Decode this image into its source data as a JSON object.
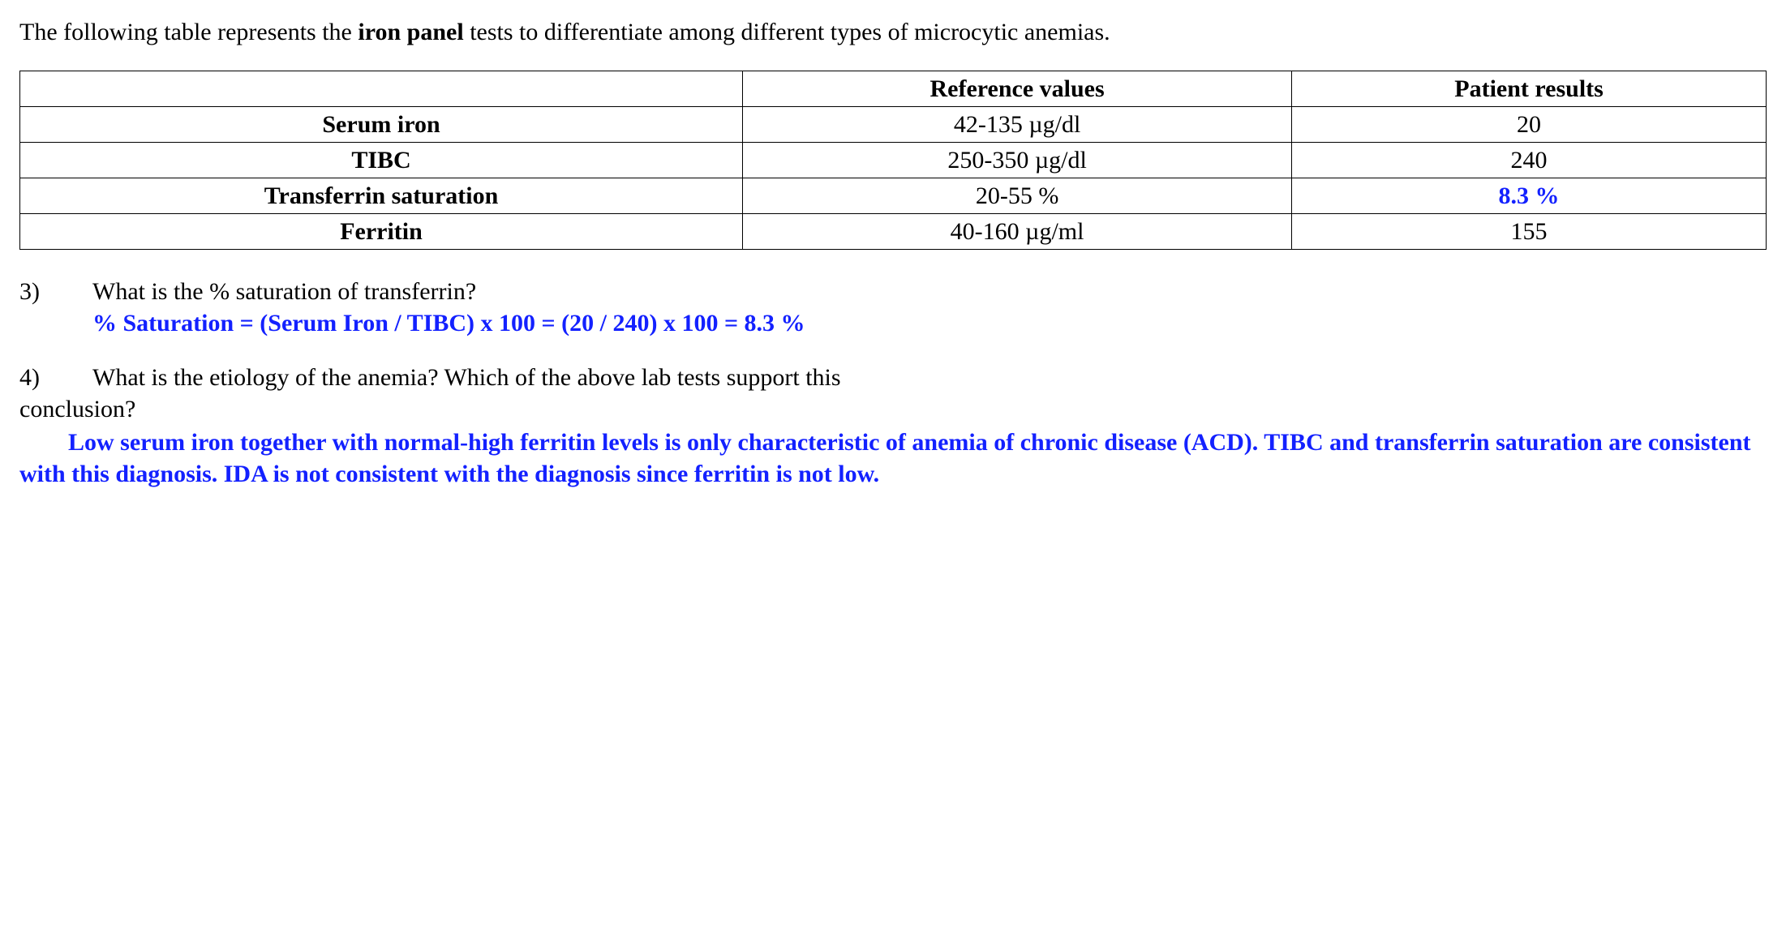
{
  "intro": {
    "pre": "The following table represents the ",
    "bold": "iron panel",
    "post": " tests to differentiate among different types of microcytic anemias."
  },
  "table": {
    "columns": [
      "",
      "Reference values",
      "Patient results"
    ],
    "rows": [
      {
        "name": "Serum iron",
        "ref": "42-135 µg/dl",
        "pat": "20",
        "pat_blue": false
      },
      {
        "name": "TIBC",
        "ref": "250-350 µg/dl",
        "pat": "240",
        "pat_blue": false
      },
      {
        "name": "Transferrin saturation",
        "ref": "20-55 %",
        "pat": "8.3 %",
        "pat_blue": true
      },
      {
        "name": "Ferritin",
        "ref": "40-160 µg/ml",
        "pat": "155",
        "pat_blue": false
      }
    ],
    "border_color": "#000000",
    "header_fontweight": "bold",
    "fontsize": 30
  },
  "q3": {
    "num": "3)",
    "question": "What is the % saturation of transferrin?",
    "answer": "% Saturation = (Serum Iron / TIBC) x 100 = (20 / 240) x 100 = 8.3 %"
  },
  "q4": {
    "num": "4)",
    "question_line1": "What is the etiology of the anemia? Which of the above lab tests support this",
    "question_line2": "conclusion?",
    "answer": "Low serum iron together with normal-high ferritin levels is only characteristic of anemia of chronic disease (ACD). TIBC and transferrin saturation are consistent with this diagnosis. IDA is not consistent with the diagnosis since ferritin is not low."
  },
  "colors": {
    "text": "#000000",
    "answer_blue": "#1321ff",
    "background": "#ffffff"
  }
}
